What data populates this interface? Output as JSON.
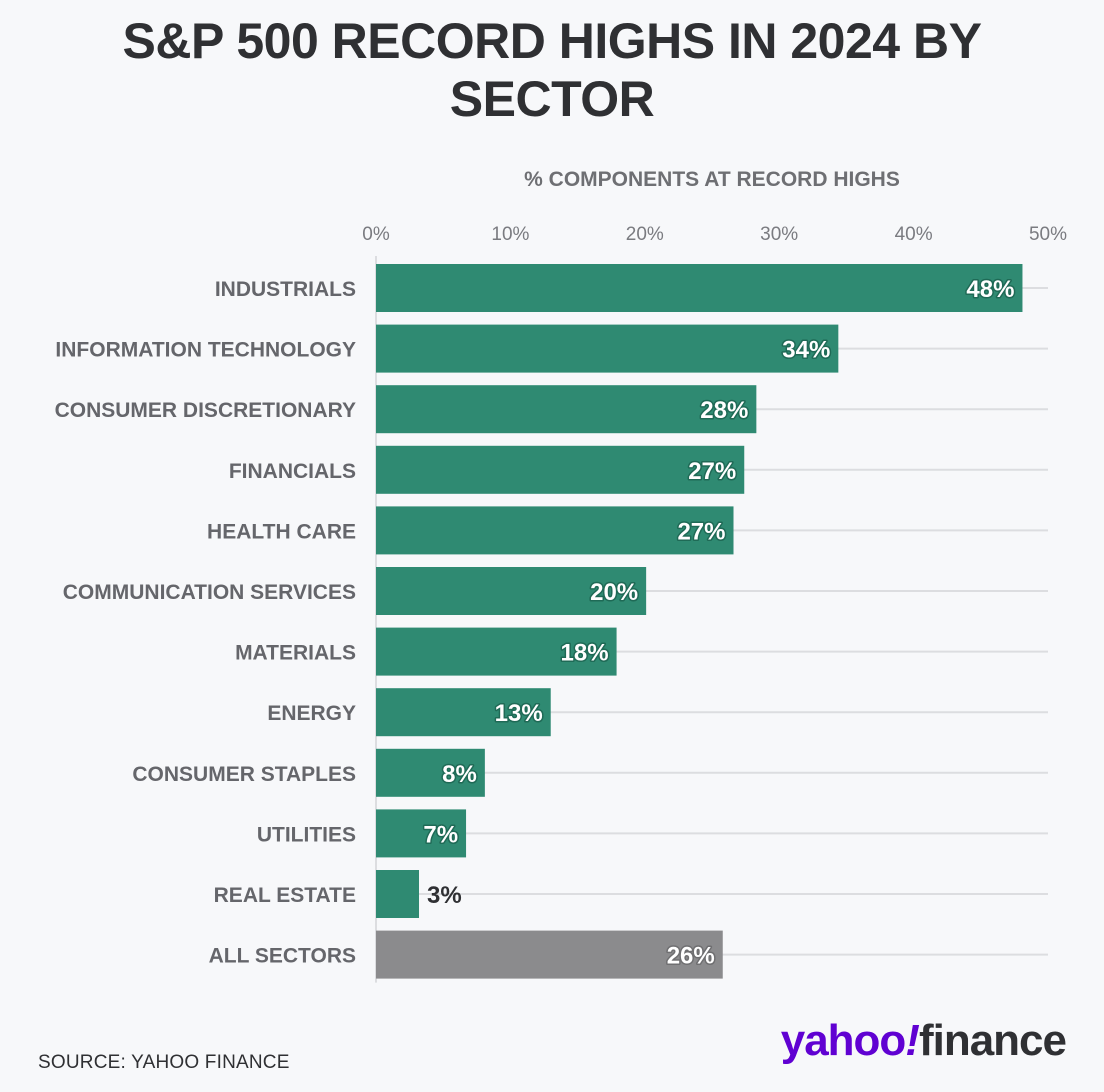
{
  "title": "S&P 500 RECORD HIGHS IN 2024 BY SECTOR",
  "source": "SOURCE: YAHOO FINANCE",
  "logo": {
    "yahoo": "yahoo",
    "bang": "!",
    "finance": "finance"
  },
  "colors": {
    "bar": "#2f8a72",
    "bar_highlight": "#8b8b8d",
    "value_text": "#ffffff",
    "value_text_outside": "#2f3033",
    "grid": "#dcdde0"
  },
  "chart_data": {
    "type": "bar",
    "orientation": "horizontal",
    "xlabel": "% COMPONENTS AT RECORD HIGHS",
    "xlim": [
      0,
      50
    ],
    "xticks": [
      0,
      10,
      20,
      30,
      40,
      50
    ],
    "xtick_labels": [
      "0%",
      "10%",
      "20%",
      "30%",
      "40%",
      "50%"
    ],
    "grid": true,
    "categories": [
      "INDUSTRIALS",
      "INFORMATION TECHNOLOGY",
      "CONSUMER DISCRETIONARY",
      "FINANCIALS",
      "HEALTH CARE",
      "COMMUNICATION SERVICES",
      "MATERIALS",
      "ENERGY",
      "CONSUMER STAPLES",
      "UTILITIES",
      "REAL ESTATE",
      "ALL SECTORS"
    ],
    "values": [
      48.1,
      34.4,
      28.3,
      27.4,
      26.6,
      20.1,
      17.9,
      13,
      8.1,
      6.7,
      3.2,
      25.8
    ],
    "value_labels": [
      "48%",
      "34%",
      "28%",
      "27%",
      "27%",
      "20%",
      "18%",
      "13%",
      "8%",
      "7%",
      "3%",
      "26%"
    ],
    "highlight_category": "ALL SECTORS"
  }
}
